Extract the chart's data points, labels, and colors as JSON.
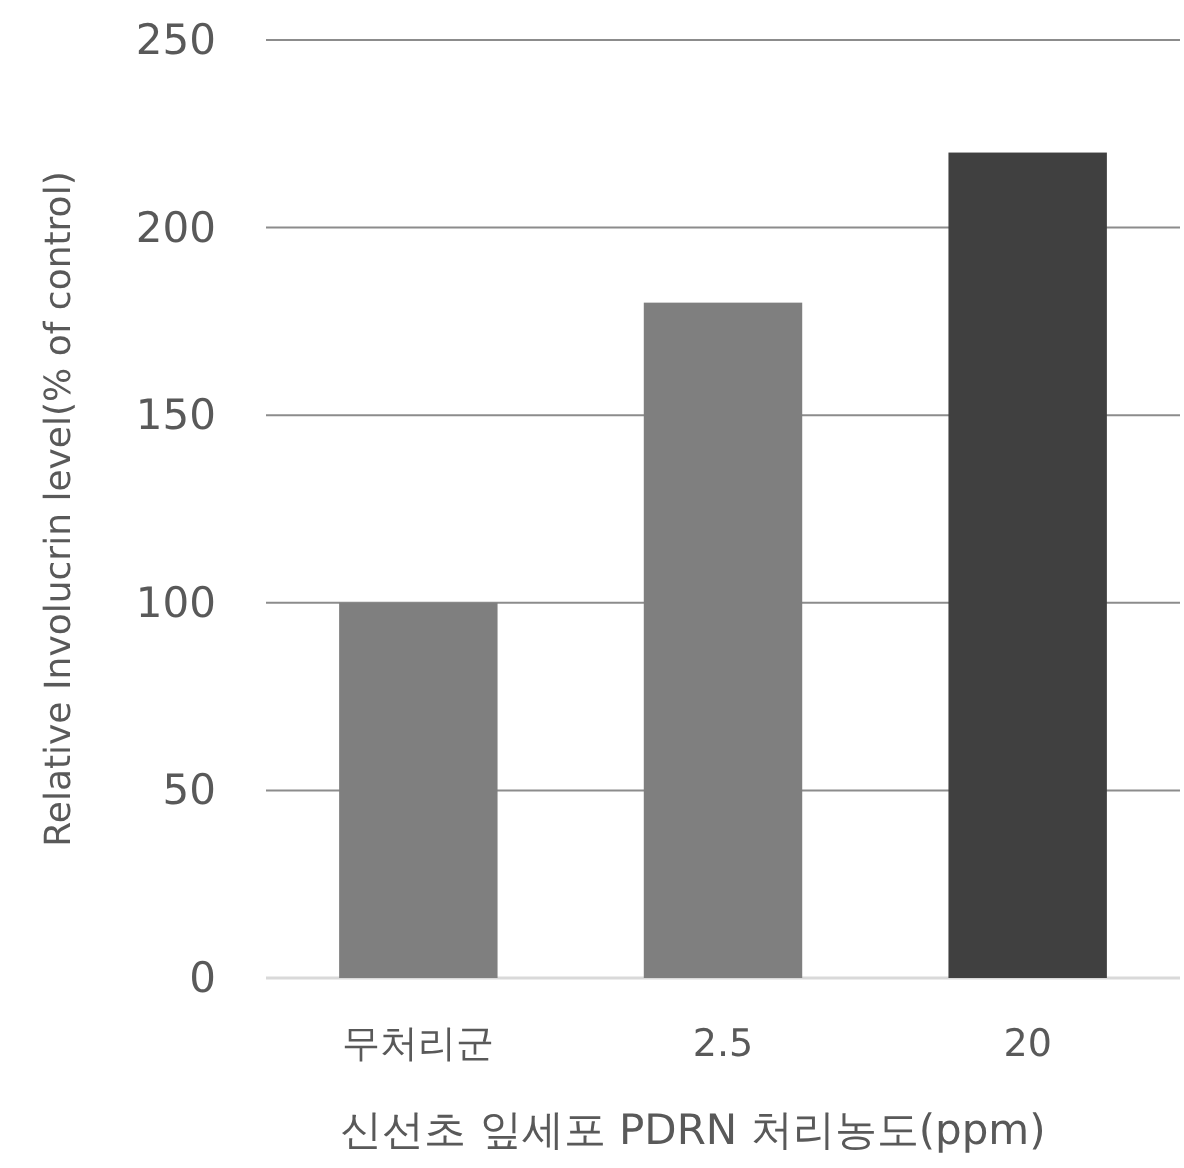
{
  "chart_data": {
    "type": "bar",
    "xlabel": "신선초 잎세포 PDRN 처리농도(ppm)",
    "ylabel": "Relative Involucrin level(% of control)",
    "categories": [
      "무처리군",
      "2.5",
      "20"
    ],
    "values": [
      100,
      180,
      220
    ],
    "colors": [
      "#7f7f7f",
      "#7f7f7f",
      "#404040"
    ],
    "ylim": [
      0,
      250
    ],
    "yticks": [
      0,
      50,
      100,
      150,
      200,
      250
    ],
    "grid": "y"
  }
}
